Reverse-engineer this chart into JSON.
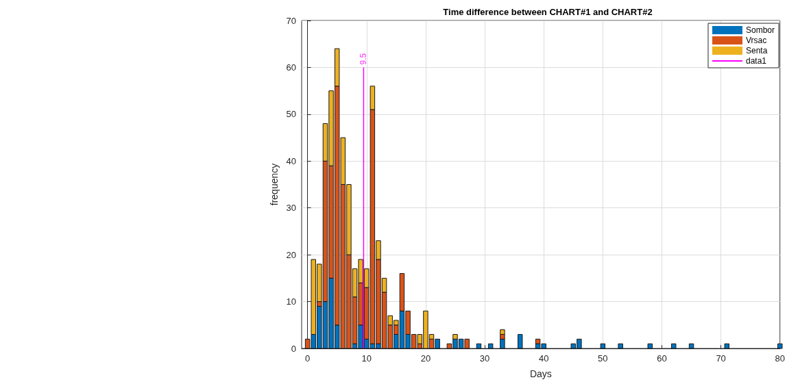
{
  "chart_data": {
    "type": "bar",
    "title": "Time difference between CHART#1 and CHART#2",
    "xlabel": "Days",
    "ylabel": "frequency",
    "x": [
      0,
      1,
      2,
      3,
      4,
      5,
      6,
      7,
      8,
      9,
      10,
      11,
      12,
      13,
      14,
      15,
      16,
      17,
      18,
      19,
      20,
      21,
      22,
      24,
      25,
      26,
      27,
      29,
      31,
      33,
      36,
      39,
      40,
      45,
      46,
      50,
      53,
      58,
      62,
      65,
      71,
      80
    ],
    "series": [
      {
        "name": "Sombor",
        "color": "#0072bd",
        "values": [
          0,
          3,
          9,
          10,
          15,
          5,
          0,
          0,
          1,
          5,
          2,
          1,
          1,
          0,
          0,
          3,
          8,
          3,
          0,
          0,
          0,
          0,
          2,
          0,
          2,
          2,
          0,
          1,
          1,
          2,
          3,
          1,
          1,
          1,
          2,
          1,
          1,
          1,
          1,
          1,
          1,
          1
        ]
      },
      {
        "name": "Vrsac",
        "color": "#d95319",
        "values": [
          2,
          0,
          1,
          30,
          24,
          51,
          35,
          20,
          10,
          9,
          11,
          50,
          18,
          12,
          5,
          2,
          8,
          5,
          3,
          1,
          0,
          2,
          0,
          1,
          0,
          0,
          2,
          0,
          0,
          1,
          0,
          1,
          0,
          0,
          0,
          0,
          0,
          0,
          0,
          0,
          0,
          0
        ]
      },
      {
        "name": "Senta",
        "color": "#edb120",
        "values": [
          0,
          16,
          8,
          8,
          16,
          8,
          10,
          15,
          6,
          5,
          4,
          5,
          4,
          3,
          2,
          1,
          0,
          0,
          0,
          2,
          8,
          1,
          0,
          0,
          1,
          0,
          0,
          0,
          0,
          1,
          0,
          0,
          0,
          0,
          0,
          0,
          0,
          0,
          0,
          0,
          0,
          0
        ]
      },
      {
        "name": "data1",
        "type": "line",
        "color": "#ff00ff",
        "x": [
          9.5,
          9.5
        ],
        "values": [
          0,
          60
        ]
      }
    ],
    "stacked": true,
    "annotations": [
      {
        "text": "9.5",
        "x": 9.5,
        "y": 60
      }
    ],
    "xlim": [
      -1,
      80
    ],
    "xticks": [
      0,
      10,
      20,
      30,
      40,
      50,
      60,
      70,
      80
    ],
    "ylim": [
      0,
      70
    ],
    "yticks": [
      0,
      10,
      20,
      30,
      40,
      50,
      60,
      70
    ],
    "grid": true,
    "legend": "top right"
  }
}
